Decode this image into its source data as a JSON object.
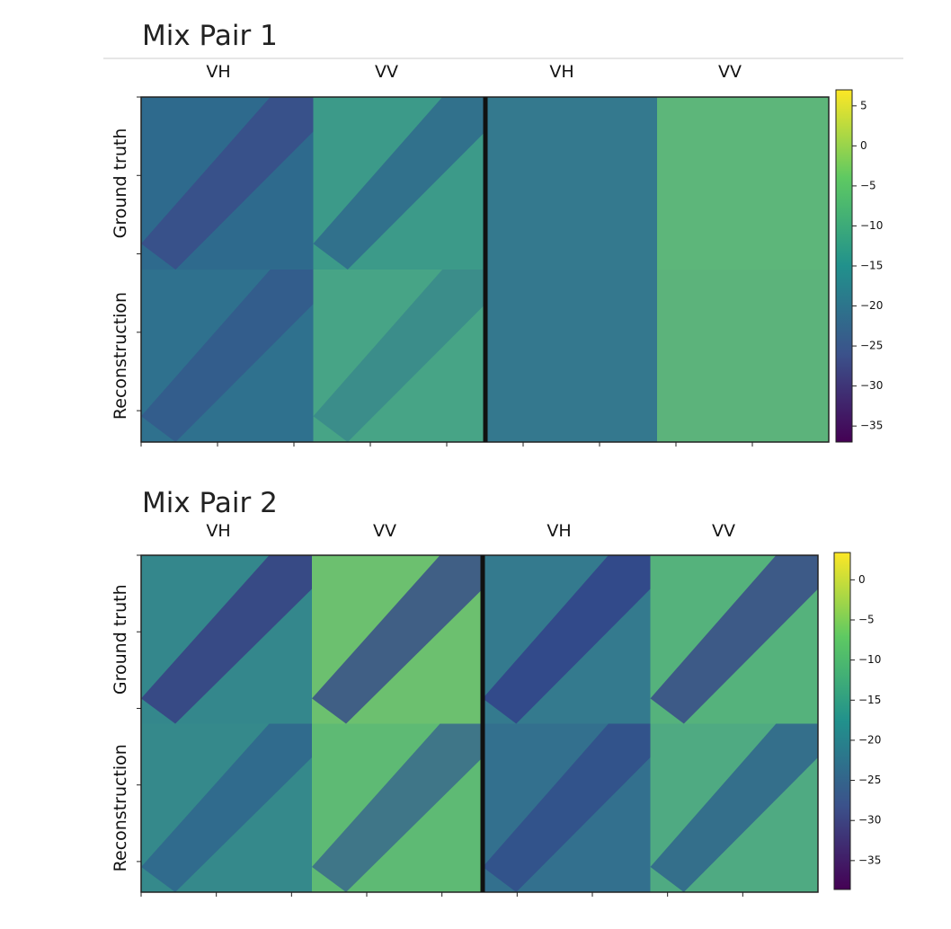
{
  "figures": [
    {
      "title": "Mix Pair 1",
      "columns": [
        "VH",
        "VV",
        "VH",
        "VV"
      ],
      "rows": [
        "Ground truth",
        "Reconstruction"
      ],
      "colorbar": {
        "lim": [
          -37,
          7
        ],
        "ticks": [
          {
            "value": 5,
            "label": "5"
          },
          {
            "value": 0,
            "label": "0"
          },
          {
            "value": -5,
            "label": "−5"
          },
          {
            "value": -10,
            "label": "−10"
          },
          {
            "value": -15,
            "label": "−15"
          },
          {
            "value": -20,
            "label": "−20"
          },
          {
            "value": -25,
            "label": "−25"
          },
          {
            "value": -30,
            "label": "−30"
          },
          {
            "value": -35,
            "label": "−35"
          }
        ]
      }
    },
    {
      "title": "Mix Pair 2",
      "columns": [
        "VH",
        "VV",
        "VH",
        "VV"
      ],
      "rows": [
        "Ground truth",
        "Reconstruction"
      ],
      "colorbar": {
        "lim": [
          -38.6,
          3.4
        ],
        "ticks": [
          {
            "value": 0,
            "label": "0"
          },
          {
            "value": -5,
            "label": "−5"
          },
          {
            "value": -10,
            "label": "−10"
          },
          {
            "value": -15,
            "label": "−15"
          },
          {
            "value": -20,
            "label": "−20"
          },
          {
            "value": -25,
            "label": "−25"
          },
          {
            "value": -30,
            "label": "−30"
          },
          {
            "value": -35,
            "label": "−35"
          }
        ]
      }
    }
  ]
}
